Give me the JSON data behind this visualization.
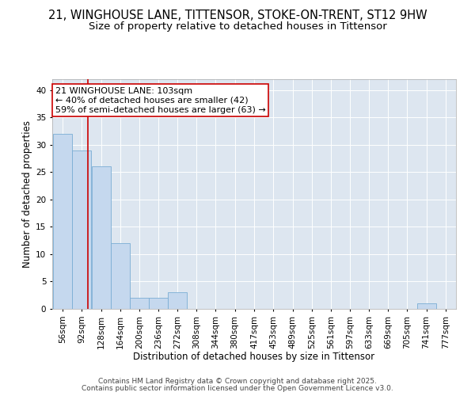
{
  "title": "21, WINGHOUSE LANE, TITTENSOR, STOKE-ON-TRENT, ST12 9HW",
  "subtitle": "Size of property relative to detached houses in Tittensor",
  "xlabel": "Distribution of detached houses by size in Tittensor",
  "ylabel": "Number of detached properties",
  "bin_labels": [
    "56sqm",
    "92sqm",
    "128sqm",
    "164sqm",
    "200sqm",
    "236sqm",
    "272sqm",
    "308sqm",
    "344sqm",
    "380sqm",
    "417sqm",
    "453sqm",
    "489sqm",
    "525sqm",
    "561sqm",
    "597sqm",
    "633sqm",
    "669sqm",
    "705sqm",
    "741sqm",
    "777sqm"
  ],
  "bin_edges": [
    56,
    92,
    128,
    164,
    200,
    236,
    272,
    308,
    344,
    380,
    417,
    453,
    489,
    525,
    561,
    597,
    633,
    669,
    705,
    741,
    777
  ],
  "values": [
    32,
    29,
    26,
    12,
    2,
    2,
    3,
    0,
    0,
    0,
    0,
    0,
    0,
    0,
    0,
    0,
    0,
    0,
    0,
    1,
    0
  ],
  "bar_color": "#c5d8ee",
  "bar_edge_color": "#7aadd4",
  "red_line_x": 103,
  "annotation_line1": "21 WINGHOUSE LANE: 103sqm",
  "annotation_line2": "← 40% of detached houses are smaller (42)",
  "annotation_line3": "59% of semi-detached houses are larger (63) →",
  "annotation_box_color": "#ffffff",
  "annotation_border_color": "#cc0000",
  "ylim": [
    0,
    42
  ],
  "yticks": [
    0,
    5,
    10,
    15,
    20,
    25,
    30,
    35,
    40
  ],
  "background_color": "#dde6f0",
  "grid_color": "#ffffff",
  "footer_line1": "Contains HM Land Registry data © Crown copyright and database right 2025.",
  "footer_line2": "Contains public sector information licensed under the Open Government Licence v3.0.",
  "title_fontsize": 10.5,
  "subtitle_fontsize": 9.5,
  "axis_label_fontsize": 8.5,
  "tick_fontsize": 7.5,
  "annotation_fontsize": 8,
  "footer_fontsize": 6.5
}
